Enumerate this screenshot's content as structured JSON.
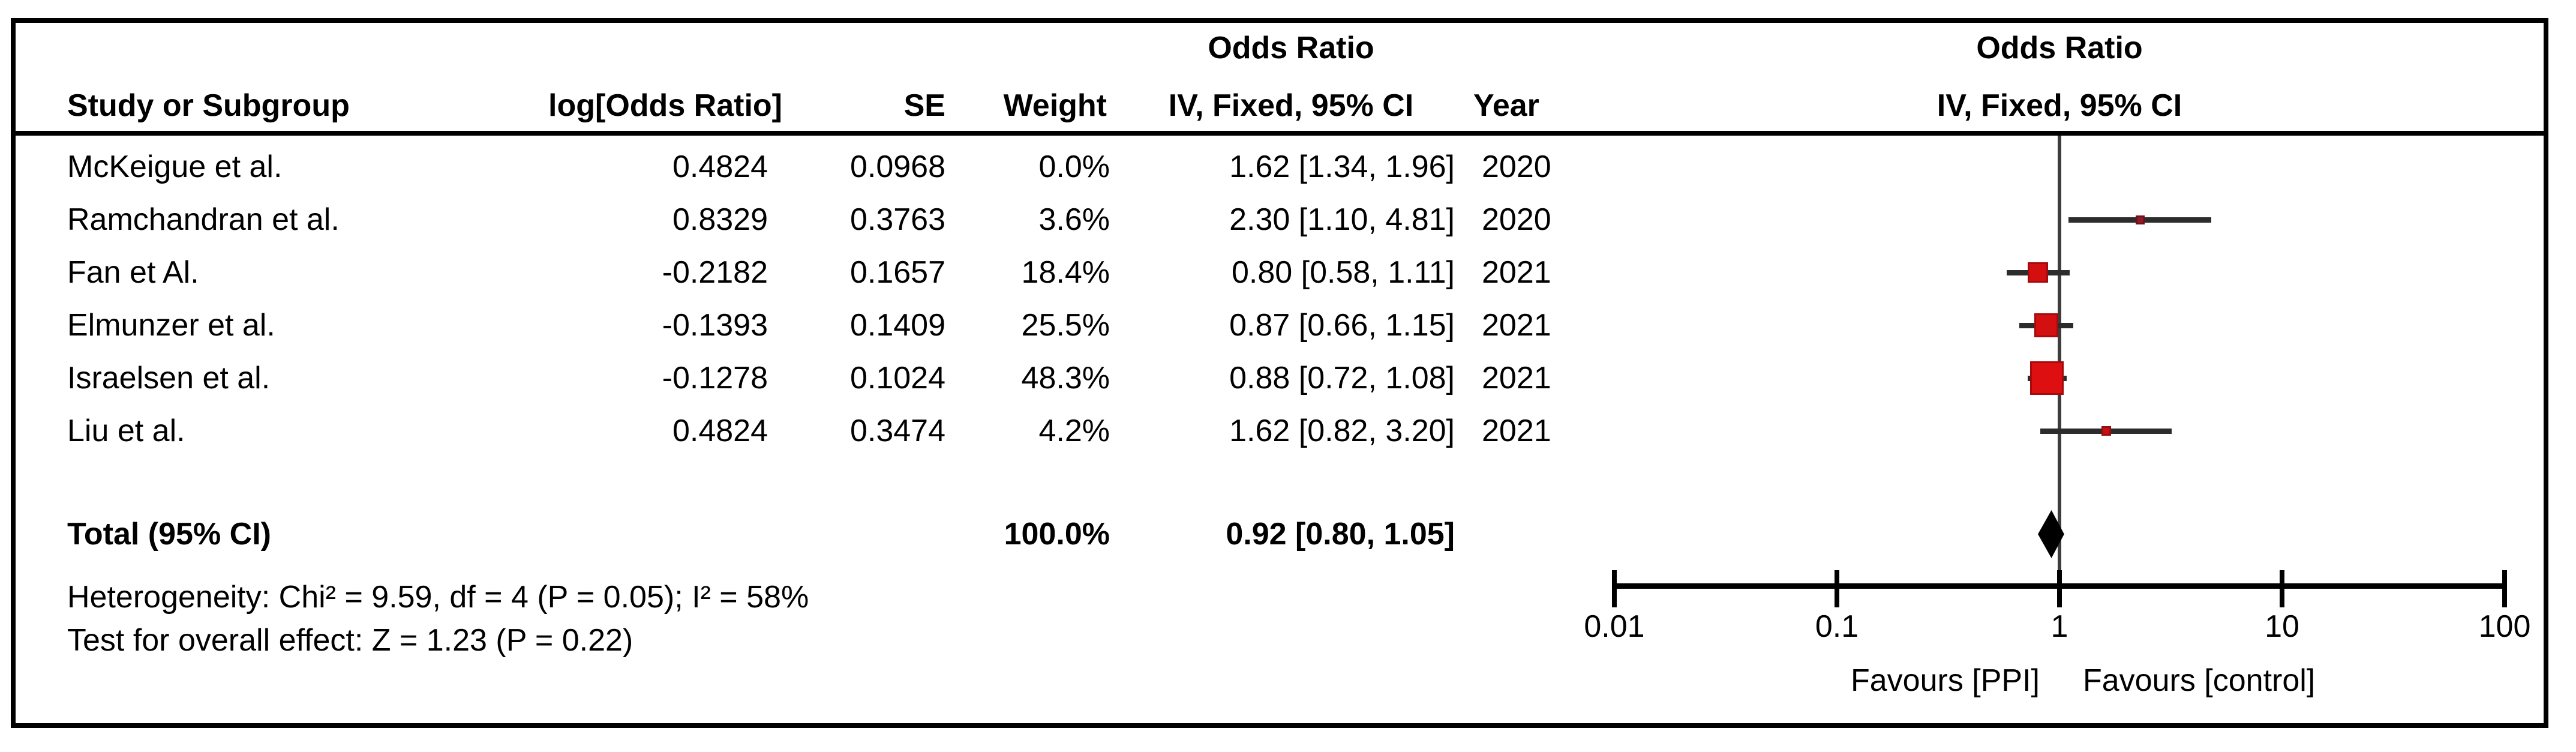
{
  "header": {
    "odds_ratio_text_col": "Odds Ratio",
    "odds_ratio_plot_col": "Odds Ratio",
    "col_study": "Study or Subgroup",
    "col_logor": "log[Odds Ratio]",
    "col_se": "SE",
    "col_weight": "Weight",
    "col_ci": "IV, Fixed, 95% CI",
    "col_year": "Year",
    "col_ci_plot": "IV, Fixed, 95% CI"
  },
  "stats": {
    "heterogeneity": "Heterogeneity: Chi² = 9.59, df = 4 (P = 0.05); I² = 58%",
    "overall_effect": "Test for overall effect: Z = 1.23 (P = 0.22)"
  },
  "axis": {
    "tick_labels": [
      "0.01",
      "0.1",
      "1",
      "10",
      "100"
    ],
    "tick_values": [
      0.01,
      0.1,
      1,
      10,
      100
    ],
    "favours_left": "Favours [PPI]",
    "favours_right": "Favours [control]"
  },
  "colors": {
    "square_red": "#d40f10",
    "square_red_bright": "#dd0f10",
    "square_dark_red": "#8e1b28",
    "square_mid_red": "#c41015",
    "ci_line": "#2c2c2c",
    "center_line": "#3d3d3d",
    "diamond": "#000000",
    "border": "#000000"
  },
  "chart_data": {
    "type": "scatter",
    "subtype": "forest_plot_meta_analysis",
    "effect_measure": "Odds Ratio",
    "model": "IV, Fixed, 95% CI",
    "x_scale": "log10",
    "xlim": [
      0.01,
      100
    ],
    "x_ticks": [
      0.01,
      0.1,
      1,
      10,
      100
    ],
    "studies": [
      {
        "name": "McKeigue et al.",
        "log_or": "0.4824",
        "se": "0.0968",
        "weight": "0.0%",
        "ci_text": "1.62 [1.34, 1.96]",
        "year": "2020",
        "or": 1.62,
        "ci_low": 1.34,
        "ci_high": 1.96,
        "weight_pct": 0.0,
        "plotted": false,
        "marker_fill": "#d40f10",
        "marker_edge": "#a50b0d"
      },
      {
        "name": "Ramchandran et al.",
        "log_or": "0.8329",
        "se": "0.3763",
        "weight": "3.6%",
        "ci_text": "2.30 [1.10, 4.81]",
        "year": "2020",
        "or": 2.3,
        "ci_low": 1.1,
        "ci_high": 4.81,
        "weight_pct": 3.6,
        "plotted": true,
        "marker_fill": "#8e1b28",
        "marker_edge": "#701019"
      },
      {
        "name": "Fan et Al.",
        "log_or": "-0.2182",
        "se": "0.1657",
        "weight": "18.4%",
        "ci_text": "0.80 [0.58, 1.11]",
        "year": "2021",
        "or": 0.8,
        "ci_low": 0.58,
        "ci_high": 1.11,
        "weight_pct": 18.4,
        "plotted": true,
        "marker_fill": "#d40f10",
        "marker_edge": "#a50b0d"
      },
      {
        "name": "Elmunzer et al.",
        "log_or": "-0.1393",
        "se": "0.1409",
        "weight": "25.5%",
        "ci_text": "0.87 [0.66, 1.15]",
        "year": "2021",
        "or": 0.87,
        "ci_low": 0.66,
        "ci_high": 1.15,
        "weight_pct": 25.5,
        "plotted": true,
        "marker_fill": "#d40f10",
        "marker_edge": "#a50b0d"
      },
      {
        "name": "Israelsen et al.",
        "log_or": "-0.1278",
        "se": "0.1024",
        "weight": "48.3%",
        "ci_text": "0.88 [0.72, 1.08]",
        "year": "2021",
        "or": 0.88,
        "ci_low": 0.72,
        "ci_high": 1.08,
        "weight_pct": 48.3,
        "plotted": true,
        "marker_fill": "#dd0f10",
        "marker_edge": "#a50b0d"
      },
      {
        "name": "Liu et al.",
        "log_or": "0.4824",
        "se": "0.3474",
        "weight": "4.2%",
        "ci_text": "1.62 [0.82, 3.20]",
        "year": "2021",
        "or": 1.62,
        "ci_low": 0.82,
        "ci_high": 3.2,
        "weight_pct": 4.2,
        "plotted": true,
        "marker_fill": "#c41015",
        "marker_edge": "#9a0c10"
      }
    ],
    "total": {
      "label": "Total (95% CI)",
      "weight": "100.0%",
      "ci_text": "0.92 [0.80, 1.05]",
      "or": 0.92,
      "ci_low": 0.8,
      "ci_high": 1.05
    },
    "heterogeneity": "Heterogeneity: Chi² = 9.59, df = 4 (P = 0.05); I² = 58%",
    "overall_effect": "Test for overall effect: Z = 1.23 (P = 0.22)",
    "favours_left": "Favours [PPI]",
    "favours_right": "Favours [control]",
    "legend_position": "none",
    "grid": false
  }
}
